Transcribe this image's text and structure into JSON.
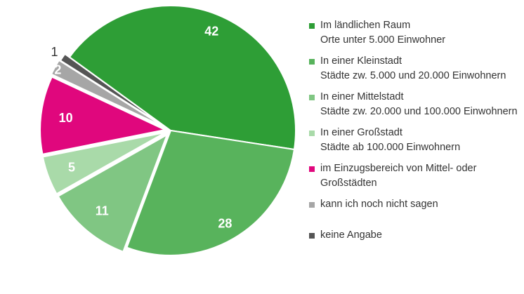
{
  "chart_data": {
    "type": "pie",
    "slices": [
      {
        "label": "Im ländlichen Raum",
        "sublabel": "Orte unter 5.000 Einwohner",
        "value": 42,
        "color": "#2e9e36"
      },
      {
        "label": "In einer Kleinstadt",
        "sublabel": "Städte zw. 5.000 und 20.000 Einwohnern",
        "value": 28,
        "color": "#58b35c"
      },
      {
        "label": "In einer Mittelstadt",
        "sublabel": "Städte zw. 20.000 und 100.000 Einwohnern",
        "value": 11,
        "color": "#80c683"
      },
      {
        "label": "In einer Großstadt",
        "sublabel": "Städte ab 100.000 Einwohnern",
        "value": 5,
        "color": "#a9daa9"
      },
      {
        "label": "im Einzugsbereich von Mittel- oder",
        "sublabel": "Großstädten",
        "value": 10,
        "color": "#e0077d"
      },
      {
        "label": "kann ich noch nicht sagen",
        "sublabel": "",
        "value": 2,
        "color": "#a6a6a6"
      },
      {
        "label": "keine Angabe",
        "sublabel": "",
        "value": 1,
        "color": "#555555"
      }
    ],
    "legend_position": "right"
  }
}
